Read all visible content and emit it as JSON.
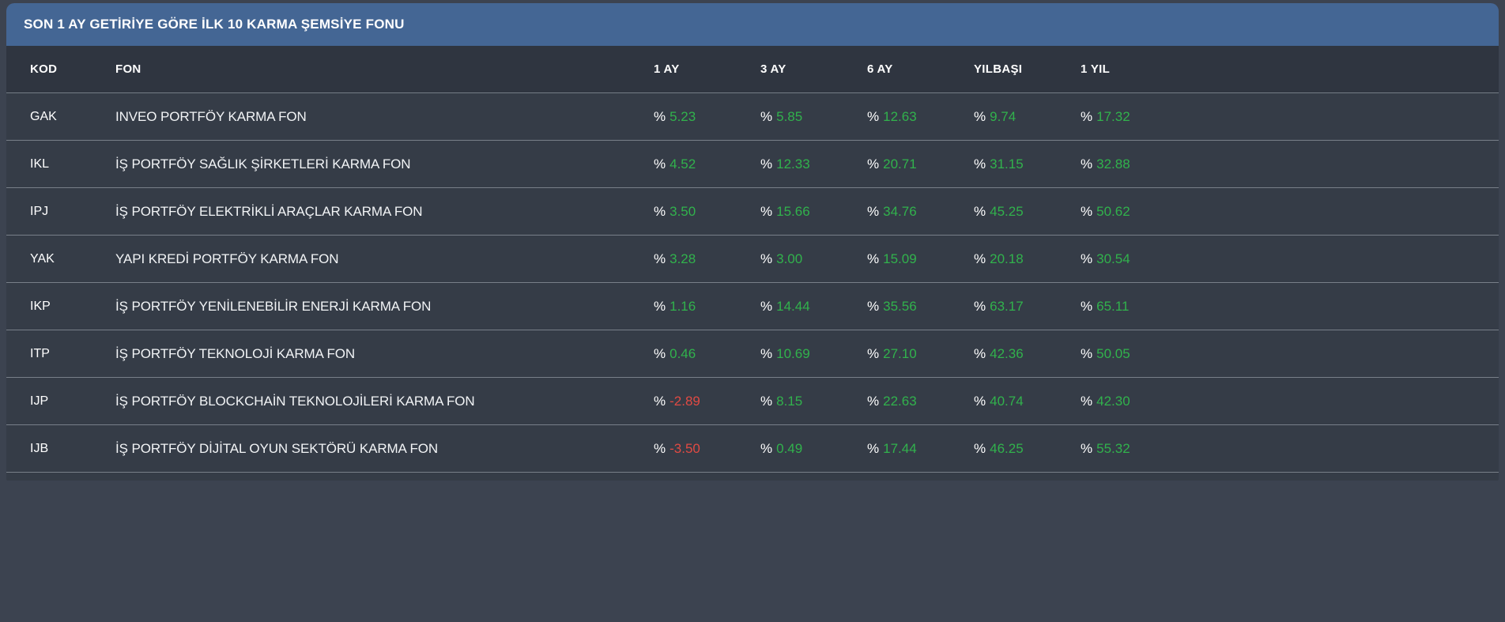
{
  "panel": {
    "title": "SON 1 AY GETİRİYE GÖRE İLK 10 KARMA ŞEMSİYE FONU"
  },
  "table": {
    "columns": [
      "KOD",
      "FON",
      "1 AY",
      "3 AY",
      "6 AY",
      "YILBAŞI",
      "1 YIL"
    ],
    "percent_prefix": "%",
    "rows": [
      {
        "kod": "GAK",
        "fon": "INVEO PORTFÖY KARMA FON",
        "values": [
          "5.23",
          "5.85",
          "12.63",
          "9.74",
          "17.32"
        ]
      },
      {
        "kod": "IKL",
        "fon": "İŞ PORTFÖY SAĞLIK ŞİRKETLERİ KARMA FON",
        "values": [
          "4.52",
          "12.33",
          "20.71",
          "31.15",
          "32.88"
        ]
      },
      {
        "kod": "IPJ",
        "fon": "İŞ PORTFÖY ELEKTRİKLİ ARAÇLAR KARMA FON",
        "values": [
          "3.50",
          "15.66",
          "34.76",
          "45.25",
          "50.62"
        ]
      },
      {
        "kod": "YAK",
        "fon": "YAPI KREDİ PORTFÖY KARMA FON",
        "values": [
          "3.28",
          "3.00",
          "15.09",
          "20.18",
          "30.54"
        ]
      },
      {
        "kod": "IKP",
        "fon": "İŞ PORTFÖY YENİLENEBİLİR ENERJİ KARMA FON",
        "values": [
          "1.16",
          "14.44",
          "35.56",
          "63.17",
          "65.11"
        ]
      },
      {
        "kod": "ITP",
        "fon": "İŞ PORTFÖY TEKNOLOJİ KARMA FON",
        "values": [
          "0.46",
          "10.69",
          "27.10",
          "42.36",
          "50.05"
        ]
      },
      {
        "kod": "IJP",
        "fon": "İŞ PORTFÖY BLOCKCHAİN TEKNOLOJİLERİ KARMA FON",
        "values": [
          "-2.89",
          "8.15",
          "22.63",
          "40.74",
          "42.30"
        ]
      },
      {
        "kod": "IJB",
        "fon": "İŞ PORTFÖY DİJİTAL OYUN SEKTÖRÜ KARMA FON",
        "values": [
          "-3.50",
          "0.49",
          "17.44",
          "46.25",
          "55.32"
        ]
      }
    ]
  },
  "colors": {
    "positive": "#31b24c",
    "negative": "#e04a43",
    "title_bar": "#446694",
    "panel_background": "#353c47",
    "page_background": "#3c4350"
  }
}
